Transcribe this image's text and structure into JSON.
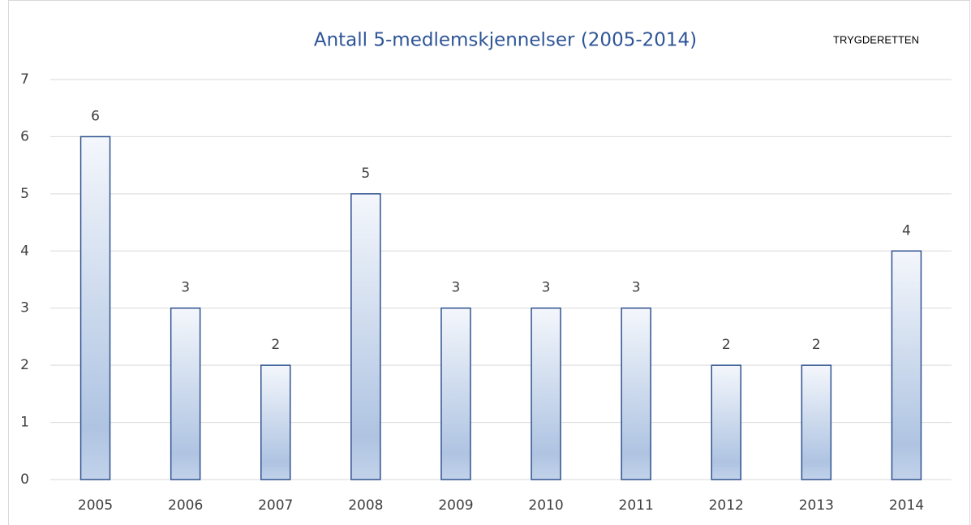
{
  "chart_data": {
    "type": "bar",
    "title": "Antall 5-medlemskjennelser (2005-2014)",
    "annotation": "TRYGDERETTEN",
    "categories": [
      "2005",
      "2006",
      "2007",
      "2008",
      "2009",
      "2010",
      "2011",
      "2012",
      "2013",
      "2014"
    ],
    "values": [
      6,
      3,
      2,
      5,
      3,
      3,
      3,
      2,
      2,
      4
    ],
    "color": "#2f528f",
    "ylim": [
      0,
      7
    ],
    "yticks": [
      0,
      1,
      2,
      3,
      4,
      5,
      6,
      7
    ],
    "grid": true
  }
}
